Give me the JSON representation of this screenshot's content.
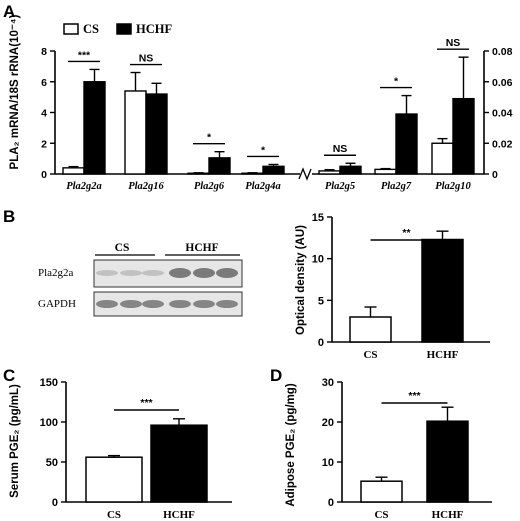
{
  "chart_data": [
    {
      "panel": "A",
      "type": "bar",
      "ylabel": "PLA₂ mRNA/18S rRNA(10⁻⁴)",
      "legend": [
        "CS",
        "HCHF"
      ],
      "legend_placement": "top-left",
      "left_axis": {
        "ylim": [
          0,
          8
        ],
        "ticks": [
          "0",
          "2",
          "4",
          "6",
          "8"
        ]
      },
      "right_axis": {
        "ylim": [
          0,
          0.08
        ],
        "ticks": [
          "0",
          "0.02",
          "0.04",
          "0.06",
          "0.08"
        ]
      },
      "categories": [
        "Pla2g2a",
        "Pla2g16",
        "Pla2g6",
        "Pla2g4a",
        "Pla2g5",
        "Pla2g7",
        "Pla2g10"
      ],
      "category_axis": [
        "left",
        "left",
        "left",
        "left",
        "right",
        "right",
        "right"
      ],
      "series": [
        {
          "name": "CS",
          "color": "#ffffff",
          "values": [
            0.4,
            5.4,
            0.05,
            0.05,
            0.002,
            0.003,
            0.02
          ],
          "errors": [
            0.08,
            1.2,
            0.03,
            0.03,
            0.0008,
            0.0005,
            0.003
          ]
        },
        {
          "name": "HCHF",
          "color": "#000000",
          "values": [
            6.0,
            5.2,
            1.05,
            0.5,
            0.005,
            0.039,
            0.049
          ],
          "errors": [
            0.8,
            0.7,
            0.4,
            0.12,
            0.002,
            0.012,
            0.027
          ]
        }
      ],
      "significance": [
        "***",
        "NS",
        "*",
        "*",
        "NS",
        "*",
        "NS"
      ]
    },
    {
      "panel": "B",
      "type": "bar",
      "ylabel": "Optical density (AU)",
      "ylim": [
        0,
        15
      ],
      "ticks": [
        "0",
        "5",
        "10",
        "15"
      ],
      "categories": [
        "CS",
        "HCHF"
      ],
      "values": [
        3.0,
        12.3
      ],
      "errors": [
        1.2,
        1.0
      ],
      "colors": [
        "#ffffff",
        "#000000"
      ],
      "significance": "**"
    },
    {
      "panel": "C",
      "type": "bar",
      "ylabel": "Serum PGE₂ (pg/mL)",
      "ylim": [
        0,
        150
      ],
      "ticks": [
        "0",
        "50",
        "100",
        "150"
      ],
      "categories": [
        "CS",
        "HCHF"
      ],
      "values": [
        56,
        96
      ],
      "errors": [
        2,
        8
      ],
      "colors": [
        "#ffffff",
        "#000000"
      ],
      "significance": "***"
    },
    {
      "panel": "D",
      "type": "bar",
      "ylabel": "Adipose PGE₂ (pg/mg)",
      "ylim": [
        0,
        30
      ],
      "ticks": [
        "0",
        "10",
        "20",
        "30"
      ],
      "categories": [
        "CS",
        "HCHF"
      ],
      "values": [
        5.2,
        20.2
      ],
      "errors": [
        1.0,
        3.5
      ],
      "colors": [
        "#ffffff",
        "#000000"
      ],
      "significance": "***"
    }
  ],
  "panels": {
    "a": "A",
    "b": "B",
    "c": "C",
    "d": "D"
  },
  "blot": {
    "groups": [
      "CS",
      "HCHF"
    ],
    "rows": [
      "Pla2g2a",
      "GAPDH"
    ]
  }
}
